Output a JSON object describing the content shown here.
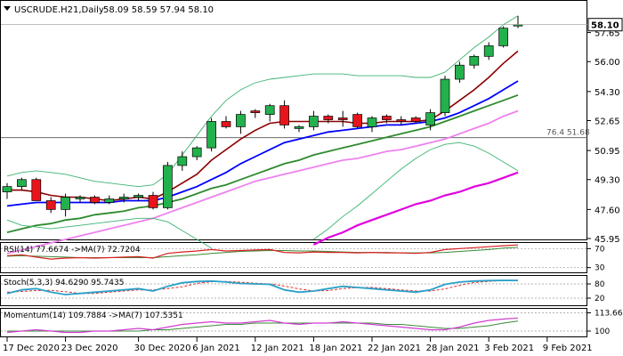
{
  "header": {
    "symbol": "USCRUDE.H21,Daily",
    "ohlc": "58.09 58.59 57.94 58.10"
  },
  "main_panel": {
    "ylim": [
      45.95,
      59.4
    ],
    "price_ticks": [
      "57.65",
      "56.00",
      "54.30",
      "52.65",
      "50.95",
      "49.30",
      "47.60",
      "45.95"
    ],
    "current_price": "58.10",
    "fib_level": {
      "label": "76.4 51.68",
      "value": 51.68
    }
  },
  "rsi_panel": {
    "label": "RSI(14) 77.6674 ->MA(7) 72.7204",
    "ticks": [
      "70",
      "30"
    ],
    "ylim": [
      20,
      80
    ]
  },
  "stoch_panel": {
    "label": "Stoch(5,3,3) 94.6290 95.7435",
    "ticks": [
      "80",
      "20"
    ],
    "ylim": [
      -10,
      110
    ]
  },
  "momentum_panel": {
    "label": "Momentum(14) 109.7884 ->MA(7) 107.5351",
    "ticks": [
      "113.6647",
      "100"
    ],
    "ylim": [
      96,
      116
    ]
  },
  "x_axis": {
    "labels": [
      {
        "text": "17 Dec 2020",
        "index": 0
      },
      {
        "text": "23 Dec 2020",
        "index": 4
      },
      {
        "text": "30 Dec 2020",
        "index": 9
      },
      {
        "text": "6 Jan 2021",
        "index": 13
      },
      {
        "text": "12 Jan 2021",
        "index": 17
      },
      {
        "text": "18 Jan 2021",
        "index": 21
      },
      {
        "text": "22 Jan 2021",
        "index": 25
      },
      {
        "text": "28 Jan 2021",
        "index": 29
      },
      {
        "text": "3 Feb 2021",
        "index": 33
      },
      {
        "text": "9 Feb 2021",
        "index": 37
      }
    ]
  },
  "colors": {
    "bull": "#22b14c",
    "bear": "#e8141c",
    "ma_fast": "#8b0000",
    "ma_blue": "#0000ff",
    "ma_green": "#2e8b2e",
    "ma_pink": "#ee82ee",
    "ma_magenta": "#e000e0",
    "bollinger": "#3cb371"
  },
  "chart_data": {
    "type": "candlestick",
    "candles": [
      {
        "o": 48.6,
        "h": 49.1,
        "l": 48.2,
        "c": 48.9
      },
      {
        "o": 48.9,
        "h": 49.4,
        "l": 48.7,
        "c": 49.3
      },
      {
        "o": 49.3,
        "h": 49.4,
        "l": 48.2,
        "c": 48.1
      },
      {
        "o": 48.1,
        "h": 48.3,
        "l": 47.4,
        "c": 47.6
      },
      {
        "o": 47.6,
        "h": 48.5,
        "l": 47.2,
        "c": 48.3
      },
      {
        "o": 48.2,
        "h": 48.4,
        "l": 48.0,
        "c": 48.3
      },
      {
        "o": 48.3,
        "h": 48.4,
        "l": 47.9,
        "c": 48.0
      },
      {
        "o": 48.0,
        "h": 48.4,
        "l": 47.9,
        "c": 48.2
      },
      {
        "o": 48.2,
        "h": 48.5,
        "l": 48.0,
        "c": 48.3
      },
      {
        "o": 48.3,
        "h": 48.5,
        "l": 48.1,
        "c": 48.4
      },
      {
        "o": 48.4,
        "h": 48.6,
        "l": 47.6,
        "c": 47.7
      },
      {
        "o": 47.7,
        "h": 50.3,
        "l": 47.6,
        "c": 50.1
      },
      {
        "o": 50.1,
        "h": 50.9,
        "l": 49.8,
        "c": 50.6
      },
      {
        "o": 50.6,
        "h": 51.2,
        "l": 50.4,
        "c": 51.1
      },
      {
        "o": 51.1,
        "h": 52.8,
        "l": 50.9,
        "c": 52.6
      },
      {
        "o": 52.6,
        "h": 52.9,
        "l": 52.2,
        "c": 52.3
      },
      {
        "o": 52.3,
        "h": 53.2,
        "l": 51.9,
        "c": 53.0
      },
      {
        "o": 53.2,
        "h": 53.3,
        "l": 52.8,
        "c": 53.1
      },
      {
        "o": 53.0,
        "h": 53.6,
        "l": 52.6,
        "c": 53.5
      },
      {
        "o": 53.5,
        "h": 53.8,
        "l": 52.2,
        "c": 52.4
      },
      {
        "o": 52.2,
        "h": 52.4,
        "l": 52.0,
        "c": 52.3
      },
      {
        "o": 52.3,
        "h": 53.2,
        "l": 52.1,
        "c": 52.9
      },
      {
        "o": 52.9,
        "h": 53.0,
        "l": 52.5,
        "c": 52.7
      },
      {
        "o": 52.8,
        "h": 53.2,
        "l": 52.3,
        "c": 52.7
      },
      {
        "o": 53.0,
        "h": 53.1,
        "l": 52.2,
        "c": 52.3
      },
      {
        "o": 52.3,
        "h": 52.9,
        "l": 52.0,
        "c": 52.8
      },
      {
        "o": 52.9,
        "h": 53.0,
        "l": 52.5,
        "c": 52.7
      },
      {
        "o": 52.7,
        "h": 52.9,
        "l": 52.4,
        "c": 52.6
      },
      {
        "o": 52.8,
        "h": 52.9,
        "l": 52.5,
        "c": 52.6
      },
      {
        "o": 52.4,
        "h": 53.3,
        "l": 52.1,
        "c": 53.1
      },
      {
        "o": 53.1,
        "h": 55.2,
        "l": 52.9,
        "c": 55.0
      },
      {
        "o": 55.0,
        "h": 56.0,
        "l": 54.8,
        "c": 55.8
      },
      {
        "o": 55.8,
        "h": 56.4,
        "l": 55.6,
        "c": 56.3
      },
      {
        "o": 56.3,
        "h": 57.1,
        "l": 56.1,
        "c": 56.9
      },
      {
        "o": 56.9,
        "h": 58.0,
        "l": 56.8,
        "c": 57.9
      },
      {
        "o": 58.1,
        "h": 58.6,
        "l": 57.9,
        "c": 58.1
      }
    ],
    "lines": [
      {
        "name": "ma_fast",
        "values": [
          48.7,
          48.7,
          48.6,
          48.4,
          48.3,
          48.3,
          48.2,
          48.1,
          48.2,
          48.3,
          48.2,
          48.6,
          49.1,
          49.6,
          50.4,
          51.0,
          51.6,
          52.1,
          52.5,
          52.6,
          52.6,
          52.6,
          52.6,
          52.6,
          52.5,
          52.5,
          52.6,
          52.6,
          52.6,
          52.7,
          53.2,
          53.8,
          54.4,
          55.1,
          55.9,
          56.6
        ]
      },
      {
        "name": "ma_blue",
        "values": [
          47.8,
          47.9,
          48.0,
          48.0,
          48.0,
          48.0,
          48.0,
          48.0,
          48.1,
          48.1,
          48.1,
          48.3,
          48.6,
          48.9,
          49.3,
          49.7,
          50.2,
          50.6,
          51.0,
          51.4,
          51.6,
          51.8,
          52.0,
          52.1,
          52.2,
          52.3,
          52.4,
          52.4,
          52.5,
          52.6,
          52.8,
          53.1,
          53.5,
          53.9,
          54.4,
          54.9
        ]
      },
      {
        "name": "ma_green",
        "values": [
          46.3,
          46.5,
          46.7,
          46.8,
          47.0,
          47.1,
          47.3,
          47.4,
          47.5,
          47.7,
          47.8,
          48.0,
          48.2,
          48.5,
          48.8,
          49.0,
          49.3,
          49.6,
          49.9,
          50.2,
          50.4,
          50.7,
          50.9,
          51.1,
          51.3,
          51.5,
          51.7,
          51.9,
          52.1,
          52.3,
          52.6,
          52.9,
          53.2,
          53.5,
          53.8,
          54.1
        ]
      },
      {
        "name": "ma_pink",
        "values": [
          45.1,
          45.3,
          45.5,
          45.7,
          45.9,
          46.1,
          46.3,
          46.5,
          46.7,
          46.9,
          47.1,
          47.4,
          47.7,
          48.0,
          48.3,
          48.6,
          48.9,
          49.2,
          49.4,
          49.6,
          49.8,
          50.0,
          50.2,
          50.4,
          50.5,
          50.7,
          50.9,
          51.0,
          51.2,
          51.4,
          51.6,
          51.9,
          52.2,
          52.5,
          52.9,
          53.2
        ]
      },
      {
        "name": "ma_magenta",
        "values": [
          null,
          null,
          null,
          null,
          null,
          null,
          null,
          null,
          null,
          null,
          null,
          null,
          null,
          null,
          null,
          null,
          null,
          null,
          null,
          null,
          null,
          45.6,
          46.0,
          46.3,
          46.7,
          47.0,
          47.3,
          47.6,
          47.9,
          48.1,
          48.4,
          48.6,
          48.9,
          49.1,
          49.4,
          49.7
        ]
      },
      {
        "name": "bollinger_upper",
        "values": [
          49.5,
          49.7,
          49.8,
          49.7,
          49.6,
          49.4,
          49.2,
          49.1,
          49.0,
          48.9,
          49.0,
          49.6,
          50.7,
          51.8,
          52.9,
          53.8,
          54.4,
          54.8,
          55.0,
          55.1,
          55.2,
          55.3,
          55.3,
          55.3,
          55.2,
          55.2,
          55.2,
          55.2,
          55.1,
          55.1,
          55.4,
          56.1,
          56.8,
          57.4,
          58.1,
          58.6
        ]
      },
      {
        "name": "bollinger_lower",
        "values": [
          47.0,
          46.7,
          46.6,
          46.5,
          46.6,
          46.7,
          46.8,
          46.9,
          47.0,
          47.1,
          47.1,
          46.9,
          46.4,
          45.9,
          45.4,
          null,
          null,
          null,
          null,
          null,
          null,
          45.9,
          46.5,
          47.2,
          47.8,
          48.5,
          49.2,
          49.9,
          50.5,
          51.0,
          51.3,
          51.4,
          51.2,
          50.8,
          50.3,
          49.8
        ]
      }
    ],
    "rsi": {
      "rsi": [
        55,
        57,
        52,
        48,
        50,
        51,
        50,
        51,
        52,
        53,
        50,
        60,
        63,
        65,
        68,
        65,
        66,
        67,
        68,
        62,
        61,
        63,
        62,
        62,
        61,
        62,
        61,
        61,
        60,
        62,
        68,
        70,
        72,
        74,
        76,
        77.7
      ],
      "ma": [
        54,
        55,
        54,
        53,
        52,
        51,
        51,
        51,
        51,
        51,
        51,
        53,
        55,
        57,
        60,
        62,
        64,
        65,
        66,
        66,
        65,
        65,
        64,
        63,
        62,
        62,
        62,
        61,
        61,
        61,
        62,
        64,
        66,
        68,
        71,
        72.7
      ]
    },
    "stoch": {
      "k": [
        40,
        55,
        60,
        45,
        35,
        40,
        45,
        50,
        55,
        60,
        50,
        70,
        85,
        90,
        92,
        88,
        82,
        80,
        78,
        55,
        45,
        50,
        60,
        70,
        65,
        60,
        55,
        50,
        45,
        55,
        78,
        88,
        92,
        94,
        95,
        94.6
      ],
      "d": [
        45,
        48,
        52,
        53,
        47,
        40,
        40,
        45,
        50,
        55,
        55,
        60,
        68,
        82,
        89,
        90,
        87,
        83,
        80,
        71,
        59,
        50,
        52,
        60,
        65,
        65,
        60,
        55,
        50,
        50,
        59,
        74,
        86,
        91,
        94,
        95.7
      ]
    },
    "momentum": {
      "mom": [
        99,
        100,
        101,
        100,
        99,
        99,
        100,
        100,
        101,
        102,
        101,
        103,
        105,
        106,
        107,
        106,
        106,
        107,
        108,
        106,
        105,
        106,
        106,
        107,
        106,
        105,
        104,
        103,
        102,
        101,
        101,
        103,
        106,
        108,
        109,
        109.8
      ],
      "ma": [
        100,
        100,
        100,
        100,
        100,
        100,
        100,
        100,
        100,
        100,
        101,
        101,
        102,
        103,
        104,
        105,
        105,
        106,
        106,
        106,
        106,
        106,
        106,
        106,
        106,
        106,
        105,
        105,
        104,
        103,
        102,
        102,
        103,
        104,
        106,
        107.5
      ]
    }
  }
}
